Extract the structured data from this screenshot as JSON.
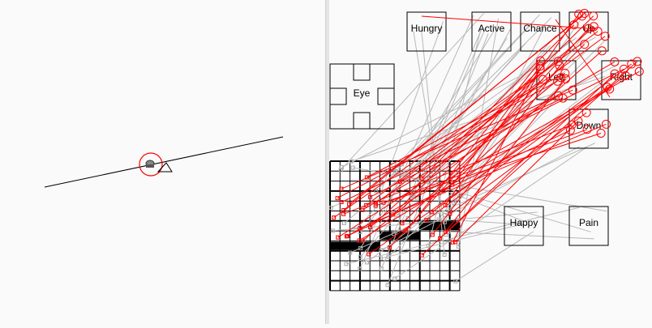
{
  "colors": {
    "active_link": "#ff0000",
    "inactive_link": "#b8b8b8",
    "node_border": "#000000"
  },
  "world": {
    "agent_icon": "agent-icon"
  },
  "network": {
    "nodes": {
      "hungry": "Hungry",
      "active": "Active",
      "chance": "Chance",
      "up": "Up",
      "left": "Left",
      "right": "Right",
      "down": "Down",
      "eye": "Eye",
      "happy": "Happy",
      "pain": "Pain"
    }
  }
}
